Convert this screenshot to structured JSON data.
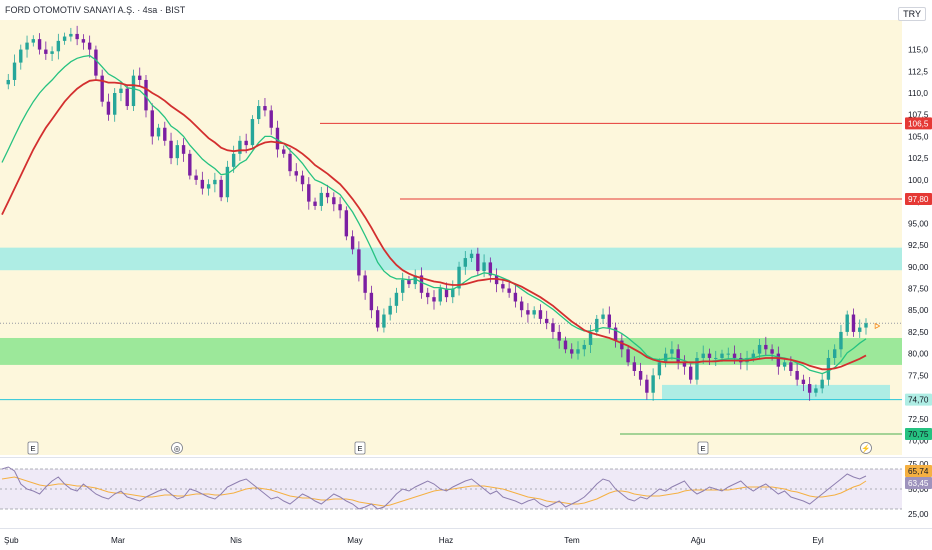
{
  "header": {
    "symbol_title": "FORD OTOMOTIV SANAYI A.Ş. · 4sa · BIST",
    "currency": "TRY"
  },
  "colors": {
    "background_band": "#fdf7dc",
    "cyan_zone": "#aeede4",
    "green_zone": "#9ce89a",
    "resistance_line": "#e53935",
    "candle_up": "#26a69a",
    "candle_down": "#7b1fa2",
    "ma_fast": "#26c281",
    "ma_slow": "#d32f2f",
    "rsi_line": "#8e7fb0",
    "rsi_signal": "#f5b042"
  },
  "chart_data": [
    {
      "type": "line",
      "title": "FORD OTOMOTIV SANAYI A.Ş. · 4sa · BIST",
      "ylim": [
        70,
        117
      ],
      "y_ticks": [
        "115,0",
        "112,5",
        "110,0",
        "107,5",
        "105,0",
        "102,5",
        "100,0",
        "97,50",
        "95,00",
        "92,50",
        "90,00",
        "87,50",
        "85,00",
        "82,50",
        "80,00",
        "77,50",
        "75,00",
        "72,50",
        "70,00"
      ],
      "x_labels": [
        "Şub",
        "Mar",
        "Nis",
        "May",
        "Haz",
        "Tem",
        "Ağu",
        "Eyl"
      ],
      "price_tags": [
        {
          "label": "106,5",
          "value": 106.5,
          "kind": "resistance"
        },
        {
          "label": "97,80",
          "value": 97.8,
          "kind": "resistance"
        },
        {
          "label": "74,70",
          "value": 74.7,
          "kind": "support"
        },
        {
          "label": "70,75",
          "value": 70.75,
          "kind": "support"
        }
      ],
      "zones": [
        {
          "name": "cyan-zone-top",
          "from": 89.6,
          "to": 92.2
        },
        {
          "name": "green-zone-mid",
          "from": 78.7,
          "to": 81.8
        },
        {
          "name": "cyan-zone-bottom",
          "from": 74.7,
          "to": 76.4
        }
      ],
      "event_markers": [
        "E",
        "◎",
        "E",
        "E",
        "⚡"
      ],
      "series": [
        {
          "values": [
            111.0,
            111.5,
            113.5,
            115.0,
            115.8,
            116.2,
            115.0,
            114.5,
            114.8,
            116.0,
            116.5,
            116.8,
            116.2,
            115.8,
            115.0,
            112.0,
            109.0,
            107.5,
            110.0,
            110.5,
            108.5,
            112.0,
            111.5,
            108.0,
            105.0,
            106.0,
            104.5,
            102.5,
            104.0,
            103.0,
            100.5,
            100.0,
            99.0,
            99.5,
            100.0,
            98.0,
            101.5,
            103.0,
            104.5,
            104.0,
            107.0,
            108.5,
            108.0,
            106.0,
            103.5,
            103.0,
            101.0,
            100.5,
            99.5,
            97.5,
            97.0,
            98.5,
            98.0,
            97.2,
            96.5,
            93.5,
            92.0,
            89.0,
            87.0,
            85.0,
            83.0,
            84.5,
            85.5,
            87.0,
            88.5,
            88.0,
            89.0,
            87.0,
            86.5,
            86.0,
            87.5,
            86.5,
            87.5,
            90.0,
            91.0,
            91.5,
            89.5,
            90.5,
            89.0,
            88.0,
            87.5,
            87.0,
            86.0,
            85.0,
            84.5,
            85.0,
            84.0,
            83.5,
            82.5,
            81.5,
            80.5,
            80.0,
            80.5,
            81.0,
            82.5,
            84.0,
            84.5,
            83.0,
            81.5,
            80.5,
            79.0,
            78.0,
            77.0,
            75.5,
            77.5,
            79.0,
            80.0,
            80.5,
            79.0,
            78.5,
            77.0,
            79.5,
            80.0,
            79.5,
            79.5,
            80.0,
            80.0,
            79.5,
            79.0,
            79.5,
            80.0,
            81.0,
            80.5,
            80.0,
            78.5,
            79.0,
            78.0,
            77.0,
            76.5,
            75.5,
            76.0,
            77.0,
            79.5,
            80.5,
            82.5,
            84.5,
            82.5,
            83.0,
            83.5
          ]
        },
        {
          "values": [
            102.0,
            103.5,
            105.0,
            106.5,
            107.8,
            109.0,
            110.0,
            110.8,
            111.5,
            112.3,
            113.0,
            113.6,
            114.0,
            114.2,
            114.3,
            113.8,
            113.0,
            112.2,
            111.8,
            111.3,
            110.6,
            110.5,
            110.3,
            109.6,
            108.6,
            108.0,
            107.2,
            106.2,
            105.7,
            105.0,
            104.0,
            103.2,
            102.4,
            101.8,
            101.3,
            100.6,
            100.7,
            101.2,
            101.9,
            102.3,
            103.3,
            104.3,
            105.0,
            105.0,
            104.6,
            104.2,
            103.4,
            102.7,
            101.9,
            100.9,
            100.0,
            99.7,
            99.3,
            98.8,
            98.3,
            97.3,
            96.3,
            95.0,
            93.6,
            92.1,
            90.5,
            89.5,
            88.9,
            88.6,
            88.6,
            88.5,
            88.6,
            88.2,
            87.9,
            87.6,
            87.6,
            87.4,
            87.4,
            87.8,
            88.3,
            88.8,
            89.0,
            89.3,
            89.2,
            89.0,
            88.7,
            88.4,
            87.9,
            87.4,
            86.9,
            86.5,
            86.1,
            85.6,
            85.1,
            84.5,
            83.9,
            83.3,
            82.9,
            82.6,
            82.6,
            82.8,
            83.0,
            82.9,
            82.7,
            82.3,
            81.8,
            81.2,
            80.6,
            79.8,
            79.4,
            79.3,
            79.4,
            79.5,
            79.4,
            79.2,
            78.9,
            79.0,
            79.1,
            79.1,
            79.2,
            79.3,
            79.4,
            79.4,
            79.3,
            79.4,
            79.5,
            79.7,
            79.8,
            79.8,
            79.6,
            79.5,
            79.3,
            78.9,
            78.6,
            78.1,
            77.9,
            77.7,
            78.0,
            78.4,
            79.1,
            80.1,
            80.6,
            81.2,
            81.7
          ]
        },
        {
          "values": [
            96.0,
            97.5,
            99.0,
            100.5,
            102.0,
            103.5,
            104.8,
            106.0,
            107.0,
            108.0,
            109.0,
            109.8,
            110.5,
            111.0,
            111.4,
            111.5,
            111.4,
            111.2,
            111.2,
            111.1,
            110.9,
            110.9,
            110.8,
            110.5,
            110.0,
            109.6,
            109.1,
            108.5,
            108.0,
            107.5,
            106.9,
            106.2,
            105.5,
            104.8,
            104.3,
            103.7,
            103.4,
            103.3,
            103.4,
            103.4,
            103.6,
            104.0,
            104.3,
            104.4,
            104.3,
            104.2,
            103.9,
            103.5,
            103.0,
            102.4,
            101.7,
            101.2,
            100.7,
            100.1,
            99.5,
            98.7,
            97.8,
            96.8,
            95.7,
            94.5,
            93.2,
            92.0,
            91.0,
            90.2,
            89.6,
            89.2,
            88.9,
            88.7,
            88.5,
            88.3,
            88.2,
            88.0,
            87.9,
            87.9,
            88.0,
            88.2,
            88.4,
            88.5,
            88.6,
            88.6,
            88.5,
            88.3,
            88.0,
            87.7,
            87.3,
            86.9,
            86.5,
            86.0,
            85.5,
            84.9,
            84.3,
            83.7,
            83.2,
            82.7,
            82.4,
            82.2,
            82.0,
            81.8,
            81.5,
            81.2,
            80.9,
            80.5,
            80.1,
            79.6,
            79.3,
            79.1,
            79.0,
            79.0,
            79.0,
            79.0,
            79.0,
            79.0,
            79.1,
            79.1,
            79.1,
            79.2,
            79.2,
            79.2,
            79.2,
            79.2,
            79.3,
            79.4,
            79.5,
            79.5,
            79.5,
            79.4,
            79.3,
            79.1,
            78.9,
            78.6,
            78.4,
            78.2,
            78.2,
            78.3,
            78.5,
            78.8,
            79.1,
            79.4,
            79.8
          ]
        }
      ]
    },
    {
      "type": "line",
      "ylim": [
        20,
        80
      ],
      "y_ticks": [
        "75,00",
        "50,00",
        "25,00"
      ],
      "value_tags": [
        "65,74",
        "63,45"
      ],
      "series": [
        {
          "values": [
            70,
            72,
            68,
            55,
            50,
            48,
            45,
            52,
            58,
            62,
            55,
            50,
            48,
            55,
            50,
            45,
            42,
            40,
            45,
            48,
            42,
            40,
            38,
            42,
            45,
            48,
            50,
            45,
            40,
            42,
            50,
            48,
            45,
            42,
            40,
            45,
            52,
            55,
            58,
            60,
            55,
            50,
            45,
            40,
            42,
            38,
            35,
            40,
            45,
            42,
            38,
            35,
            40,
            45,
            42,
            38,
            35,
            30,
            32,
            35,
            30,
            32,
            38,
            45,
            50,
            48,
            52,
            55,
            58,
            55,
            50,
            48,
            52,
            55,
            58,
            60,
            55,
            50,
            45,
            48,
            42,
            40,
            38,
            35,
            38,
            40,
            35,
            32,
            35,
            38,
            32,
            35,
            38,
            42,
            48,
            55,
            60,
            58,
            50,
            45,
            40,
            38,
            42,
            40,
            45,
            50,
            48,
            52,
            55,
            58,
            50,
            45,
            48,
            52,
            50,
            48,
            52,
            55,
            58,
            52,
            48,
            52,
            55,
            50,
            45,
            48,
            42,
            40,
            38,
            35,
            40,
            45,
            50,
            55,
            60,
            65,
            62,
            60,
            63
          ]
        },
        {
          "values": [
            60,
            61,
            62,
            60,
            58,
            56,
            54,
            53,
            54,
            55,
            55,
            54,
            53,
            53,
            52,
            51,
            49,
            47,
            46,
            46,
            45,
            44,
            43,
            42,
            42,
            43,
            44,
            44,
            43,
            43,
            44,
            45,
            45,
            45,
            44,
            44,
            45,
            46,
            48,
            50,
            51,
            51,
            50,
            49,
            47,
            45,
            43,
            42,
            41,
            41,
            40,
            39,
            39,
            40,
            40,
            40,
            39,
            37,
            36,
            35,
            34,
            33,
            34,
            36,
            38,
            40,
            42,
            44,
            46,
            48,
            49,
            49,
            50,
            51,
            52,
            53,
            53,
            53,
            52,
            51,
            50,
            48,
            46,
            44,
            42,
            41,
            40,
            38,
            37,
            37,
            36,
            35,
            35,
            36,
            38,
            40,
            43,
            46,
            48,
            48,
            47,
            45,
            44,
            43,
            43,
            43,
            44,
            45,
            46,
            48,
            49,
            49,
            49,
            49,
            49,
            49,
            49,
            50,
            51,
            52,
            52,
            52,
            52,
            52,
            51,
            50,
            48,
            47,
            45,
            43,
            42,
            42,
            43,
            44,
            46,
            49,
            52,
            54,
            58
          ]
        }
      ]
    }
  ]
}
